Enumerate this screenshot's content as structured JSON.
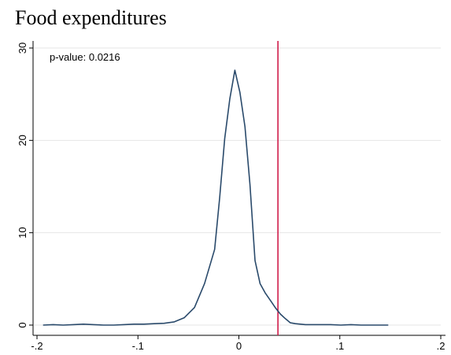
{
  "chart_data": {
    "type": "line",
    "title": "Food expenditures",
    "xlabel": "",
    "ylabel": "",
    "xlim": [
      -0.2,
      0.2
    ],
    "ylim": [
      0,
      30
    ],
    "x_ticks": [
      -0.2,
      -0.1,
      0,
      0.1,
      0.2
    ],
    "x_tick_labels": [
      "-.2",
      "-.1",
      "0",
      ".1",
      ".2"
    ],
    "y_ticks": [
      0,
      10,
      20,
      30
    ],
    "y_tick_labels": [
      "0",
      "10",
      "20",
      "30"
    ],
    "grid": true,
    "annotation": "p-value: 0.0216",
    "reference_line": {
      "x": 0.0387,
      "color": "#d01c4b"
    },
    "series": [
      {
        "color": "#2a4a6b",
        "x": [
          -0.194,
          -0.184,
          -0.174,
          -0.164,
          -0.154,
          -0.144,
          -0.134,
          -0.124,
          -0.114,
          -0.104,
          -0.094,
          -0.084,
          -0.074,
          -0.064,
          -0.054,
          -0.044,
          -0.034,
          -0.024,
          -0.019,
          -0.014,
          -0.009,
          -0.004,
          0.001,
          0.006,
          0.011,
          0.016,
          0.021,
          0.026,
          0.031,
          0.036,
          0.041,
          0.046,
          0.051,
          0.056,
          0.061,
          0.066,
          0.071,
          0.081,
          0.091,
          0.101,
          0.111,
          0.121,
          0.131,
          0.148
        ],
        "y": [
          0.0,
          0.05,
          0.0,
          0.05,
          0.1,
          0.05,
          0.0,
          0.0,
          0.05,
          0.1,
          0.1,
          0.15,
          0.2,
          0.35,
          0.8,
          1.9,
          4.5,
          8.2,
          13.8,
          20.2,
          24.5,
          27.6,
          25.2,
          21.5,
          15.2,
          7.0,
          4.5,
          3.5,
          2.7,
          1.9,
          1.2,
          0.7,
          0.25,
          0.15,
          0.1,
          0.05,
          0.05,
          0.05,
          0.05,
          0.0,
          0.05,
          0.0,
          0.0,
          0.0
        ]
      }
    ]
  }
}
